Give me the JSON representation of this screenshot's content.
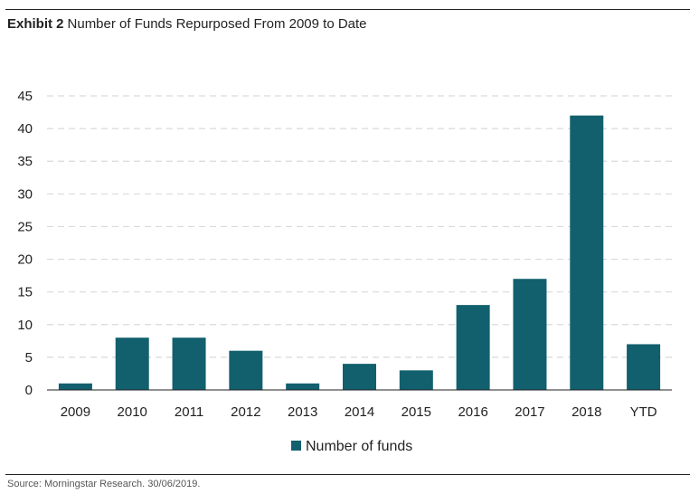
{
  "header": {
    "label": "Exhibit 2",
    "title": "Number of Funds Repurposed From 2009 to Date"
  },
  "footer": {
    "source": "Source: Morningstar Research. 30/06/2019."
  },
  "colors": {
    "bar": "#12606e",
    "gridline": "#d9d9d9",
    "axis": "#222222"
  },
  "chart_data": {
    "type": "bar",
    "title": "Number of Funds Repurposed From 2009 to Date",
    "xlabel": "",
    "ylabel": "",
    "categories": [
      "2009",
      "2010",
      "2011",
      "2012",
      "2013",
      "2014",
      "2015",
      "2016",
      "2017",
      "2018",
      "YTD"
    ],
    "series": [
      {
        "name": "Number of funds",
        "values": [
          1,
          8,
          8,
          6,
          1,
          4,
          3,
          13,
          17,
          42,
          7
        ]
      }
    ],
    "ylim": [
      0,
      45
    ],
    "yticks": [
      0,
      5,
      10,
      15,
      20,
      25,
      30,
      35,
      40,
      45
    ],
    "grid": true,
    "grid_style": "dashed horizontal",
    "legend_position": "bottom-center"
  }
}
